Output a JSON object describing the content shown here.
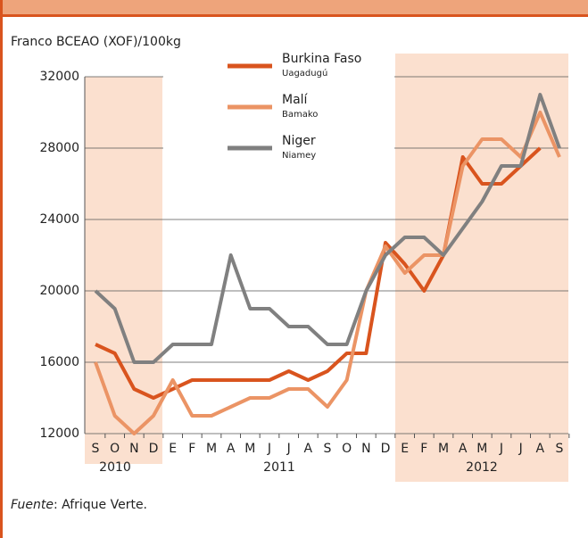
{
  "chart_data": {
    "type": "line",
    "y_label": "Franco BCEAO (XOF)/100kg",
    "categories": [
      "S",
      "O",
      "N",
      "D",
      "E",
      "F",
      "M",
      "A",
      "M",
      "J",
      "J",
      "A",
      "S",
      "O",
      "N",
      "D",
      "E",
      "F",
      "M",
      "A",
      "M",
      "J",
      "J",
      "A",
      "S"
    ],
    "years": [
      "2010",
      "2011",
      "2012"
    ],
    "series": [
      {
        "name": "Burkina Faso",
        "city": "Uagadugú",
        "color": "#d9541e",
        "values": [
          17000,
          16500,
          14500,
          14000,
          14500,
          15000,
          15000,
          15000,
          15000,
          15000,
          15500,
          15000,
          15500,
          16500,
          16500,
          22700,
          21500,
          20000,
          22000,
          27500,
          26000,
          26000,
          27000,
          28000,
          null
        ]
      },
      {
        "name": "Malí",
        "city": "Bamako",
        "color": "#eb9465",
        "values": [
          16000,
          13000,
          12000,
          13000,
          15000,
          13000,
          13000,
          13500,
          14000,
          14000,
          14500,
          14500,
          13500,
          15000,
          20000,
          22500,
          21000,
          22000,
          22000,
          27000,
          28500,
          28500,
          27500,
          30000,
          27500
        ]
      },
      {
        "name": "Niger",
        "city": "Niamey",
        "color": "#808080",
        "values": [
          20000,
          19000,
          16000,
          16000,
          17000,
          17000,
          17000,
          22000,
          19000,
          19000,
          18000,
          18000,
          17000,
          17000,
          20000,
          22000,
          23000,
          23000,
          22000,
          23500,
          25000,
          27000,
          27000,
          31000,
          28000
        ]
      }
    ],
    "ylim": [
      12000,
      32000
    ],
    "yticks": [
      12000,
      16000,
      20000,
      24000,
      28000,
      32000
    ],
    "grid": true,
    "source_label": "Fuente",
    "source_text": ": Afrique Verte."
  }
}
